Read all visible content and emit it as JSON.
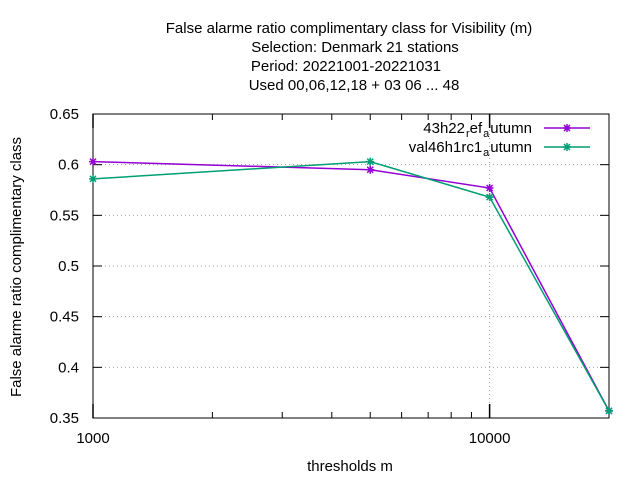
{
  "chart_data": {
    "type": "line",
    "title_lines": [
      "False alarme ratio complimentary class  for Visibility (m)",
      "Selection: Denmark     21 stations",
      "Period: 20221001-20221031",
      "Used  00,06,12,18  + 03 06 ... 48"
    ],
    "xlabel": "thresholds m",
    "ylabel": "False alarme ratio complimentary class",
    "x_scale": "log",
    "xlim": [
      1000,
      20000
    ],
    "ylim": [
      0.35,
      0.65
    ],
    "x_ticks": [
      1000,
      10000
    ],
    "x_tick_labels": [
      "1000",
      "10000"
    ],
    "y_ticks": [
      0.35,
      0.4,
      0.45,
      0.5,
      0.55,
      0.6,
      0.65
    ],
    "y_tick_labels": [
      "0.35",
      "0.4",
      "0.45",
      "0.5",
      "0.55",
      "0.6",
      "0.65"
    ],
    "grid": true,
    "legend_position": "top-right",
    "series": [
      {
        "legend_base1": "43h22",
        "legend_sub1": "r",
        "legend_base2": "ef",
        "legend_sub2": "a",
        "legend_base3": "utumn",
        "color": "#9400d3",
        "x": [
          1000,
          5000,
          10000,
          20000
        ],
        "y": [
          0.603,
          0.595,
          0.577,
          0.357
        ]
      },
      {
        "legend_base1": "val46h1rc1",
        "legend_sub1": "a",
        "legend_base2": "utumn",
        "color": "#009e73",
        "x": [
          1000,
          5000,
          10000,
          20000
        ],
        "y": [
          0.586,
          0.603,
          0.568,
          0.357
        ]
      }
    ]
  }
}
